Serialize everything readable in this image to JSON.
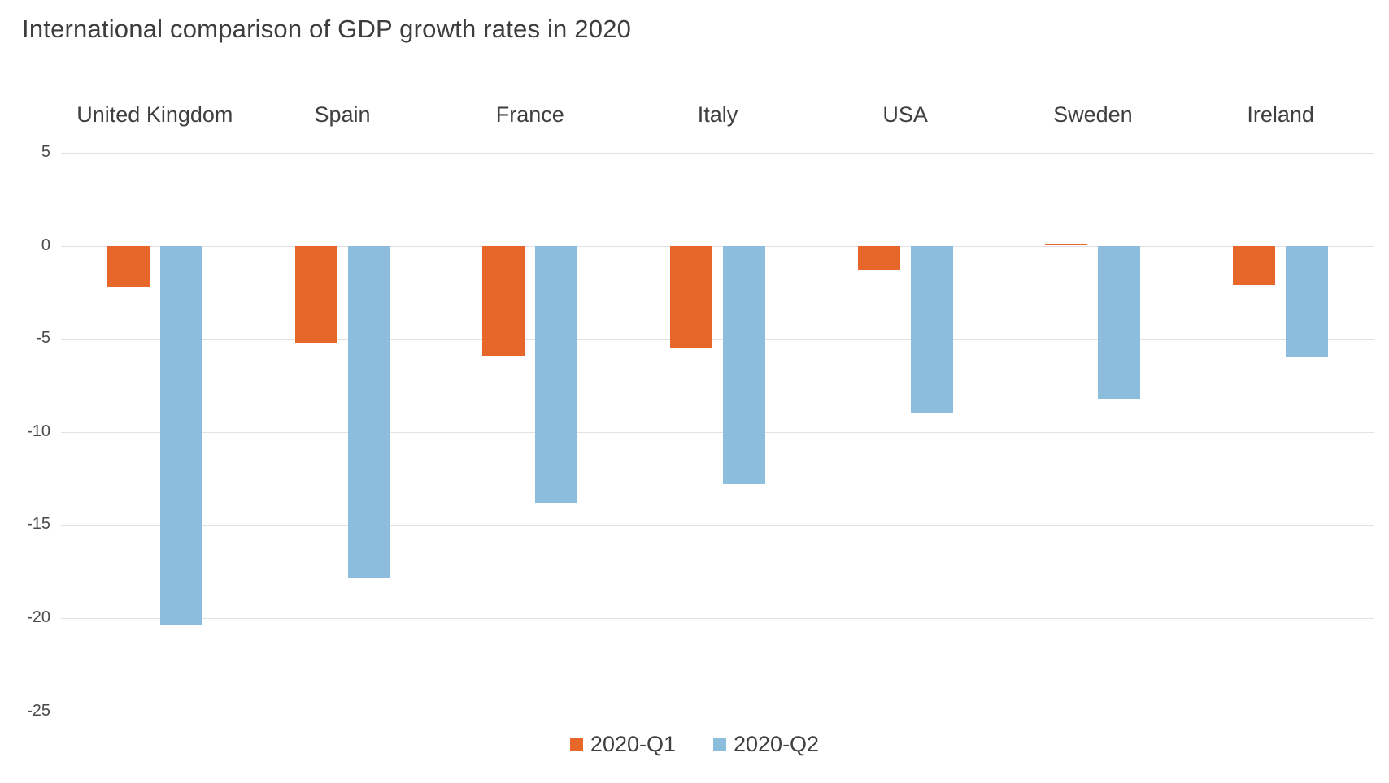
{
  "title": "International comparison of GDP growth rates in 2020",
  "chart_data": {
    "type": "bar",
    "title": "International comparison of GDP growth rates in 2020",
    "categories": [
      "United Kingdom",
      "Spain",
      "France",
      "Italy",
      "USA",
      "Sweden",
      "Ireland"
    ],
    "series": [
      {
        "name": "2020-Q1",
        "color": "#e7672b",
        "values": [
          -2.2,
          -5.2,
          -5.9,
          -5.5,
          -1.3,
          0.1,
          -2.1
        ]
      },
      {
        "name": "2020-Q2",
        "color": "#8dbddc",
        "values": [
          -20.4,
          -17.8,
          -13.8,
          -12.8,
          -9.0,
          -8.2,
          -6.0
        ]
      }
    ],
    "xlabel": "",
    "ylabel": "",
    "ylim": [
      -25,
      5
    ],
    "yticks": [
      5,
      0,
      -5,
      -10,
      -15,
      -20,
      -25
    ],
    "grid": "horizontal",
    "legend_position": "bottom",
    "category_labels_position": "top"
  },
  "colors": {
    "q1_orange": "#e7672b",
    "q2_blue": "#8dbddc",
    "gridline": "#e2e2e2",
    "title_text": "#3d3d3d",
    "axis_text": "#4a4a4a",
    "background": "#ffffff"
  }
}
